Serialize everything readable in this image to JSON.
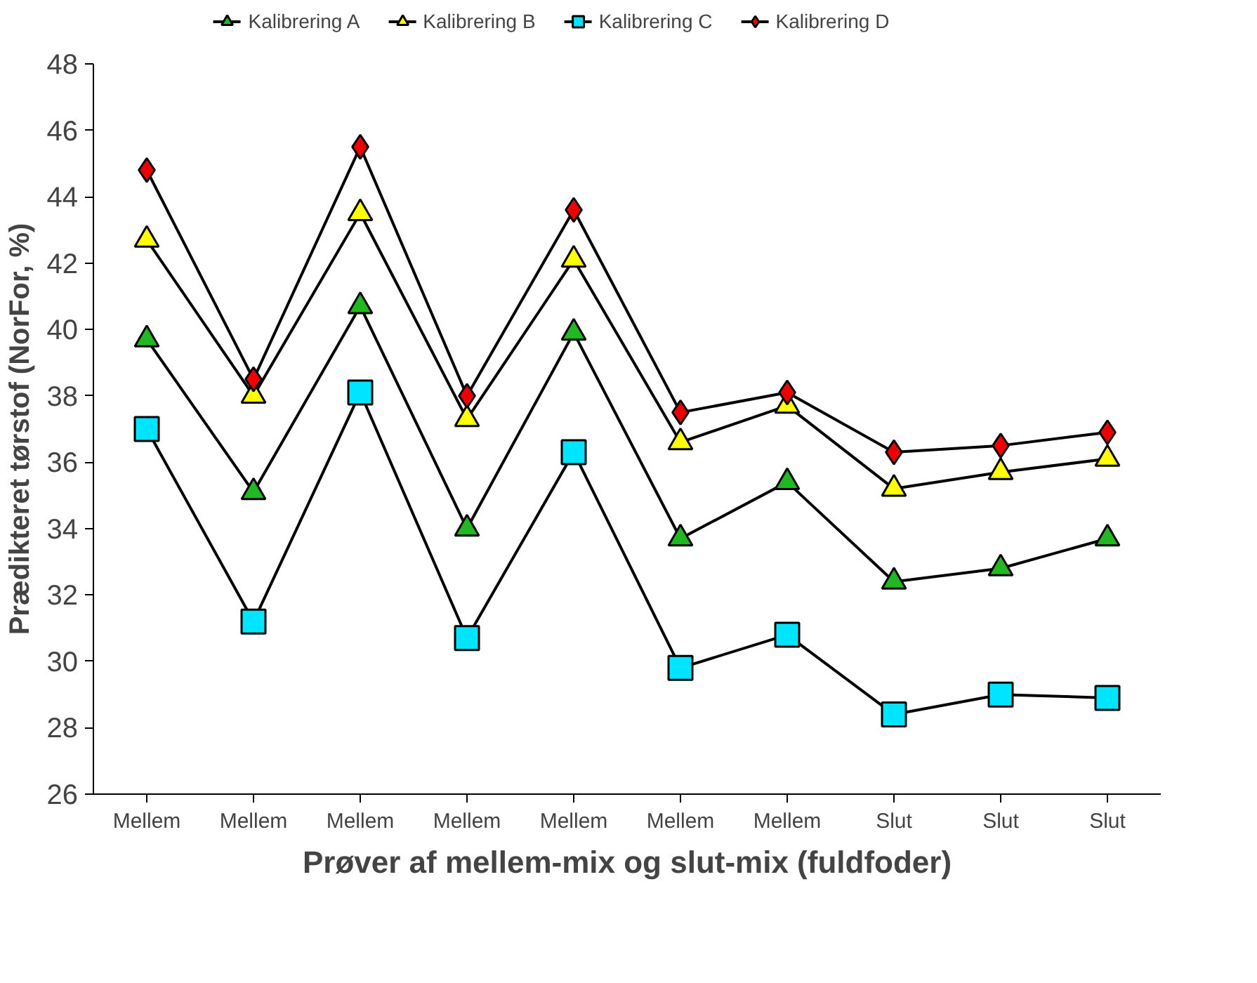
{
  "chart_data": {
    "type": "line",
    "xlabel": "Prøver af mellem-mix og slut-mix (fuldfoder)",
    "ylabel": "Prædikteret tørstof (NorFor, %)",
    "categories": [
      "Mellem",
      "Mellem",
      "Mellem",
      "Mellem",
      "Mellem",
      "Mellem",
      "Mellem",
      "Slut",
      "Slut",
      "Slut"
    ],
    "series": [
      {
        "name": "Kalibrering A",
        "color": "#22b822",
        "marker": "triangle",
        "values": [
          39.7,
          35.1,
          40.7,
          34.0,
          39.9,
          33.7,
          35.4,
          32.4,
          32.8,
          33.7
        ]
      },
      {
        "name": "Kalibrering B",
        "color": "#ffff00",
        "marker": "triangle",
        "values": [
          42.7,
          38.0,
          43.5,
          37.3,
          42.1,
          36.6,
          37.7,
          35.2,
          35.7,
          36.1
        ]
      },
      {
        "name": "Kalibrering C",
        "color": "#00e5ff",
        "marker": "square",
        "values": [
          37.0,
          31.2,
          38.1,
          30.7,
          36.3,
          29.8,
          30.8,
          28.4,
          29.0,
          28.9
        ]
      },
      {
        "name": "Kalibrering D",
        "color": "#ee0000",
        "marker": "diamond",
        "values": [
          44.8,
          38.5,
          45.5,
          38.0,
          43.6,
          37.5,
          38.1,
          36.3,
          36.5,
          36.9
        ]
      }
    ],
    "ylim": [
      26,
      48
    ],
    "yticks": [
      26,
      28,
      30,
      32,
      34,
      36,
      38,
      40,
      42,
      44,
      46,
      48
    ],
    "grid": false,
    "legend": "top",
    "line_style": "solid"
  }
}
